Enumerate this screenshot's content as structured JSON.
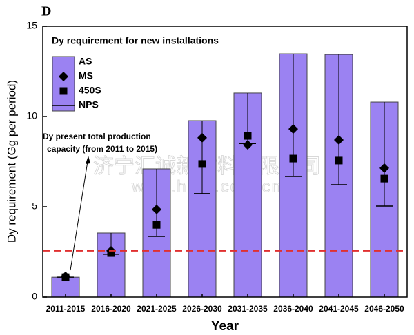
{
  "chart_data": {
    "type": "bar",
    "panel_label": "D",
    "legend_title": "Dy requirement for new installations",
    "x_label": "Year",
    "y_label": "Dy requirement (Gg per period)",
    "categories": [
      "2011-2015",
      "2016-2020",
      "2021-2025",
      "2026-2030",
      "2031-2035",
      "2036-2040",
      "2041-2045",
      "2046-2050"
    ],
    "series": [
      {
        "name": "AS",
        "color": "#9b82f2",
        "marker": "bar",
        "values": [
          1.1,
          3.55,
          7.1,
          9.77,
          11.3,
          13.47,
          13.43,
          10.8
        ]
      },
      {
        "name": "MS",
        "color": "#000000",
        "marker": "diamond",
        "values": [
          1.15,
          2.56,
          4.85,
          8.82,
          8.43,
          9.31,
          8.7,
          7.14
        ]
      },
      {
        "name": "450S",
        "color": "#000000",
        "marker": "square",
        "values": [
          1.1,
          2.44,
          4.0,
          7.37,
          8.93,
          7.67,
          7.56,
          6.56
        ]
      },
      {
        "name": "NPS",
        "color": "#000000",
        "marker": "hline",
        "values": [
          1.1,
          2.37,
          3.36,
          5.73,
          8.5,
          6.68,
          6.22,
          5.04
        ]
      }
    ],
    "capacity_line": {
      "value": 2.56,
      "color": "#e03030",
      "label": [
        "Dy present total production",
        "capacity (from 2011 to 2015)"
      ]
    },
    "watermark": [
      "济宁汇诚新材料有限公司",
      "www.hcre.com.cn"
    ],
    "ylim": [
      0,
      15
    ],
    "yticks": [
      0,
      5,
      10,
      15
    ]
  }
}
